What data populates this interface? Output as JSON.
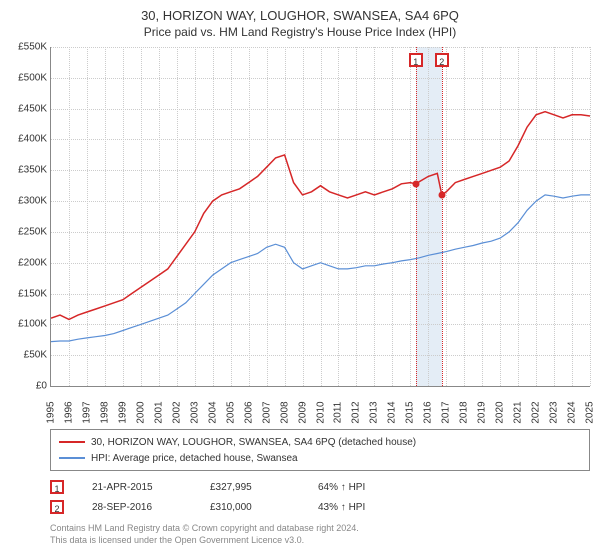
{
  "title": "30, HORIZON WAY, LOUGHOR, SWANSEA, SA4 6PQ",
  "subtitle": "Price paid vs. HM Land Registry's House Price Index (HPI)",
  "chart": {
    "type": "line",
    "background_color": "#ffffff",
    "grid_color": "#cccccc",
    "axis_color": "#888888",
    "ylim": [
      0,
      550000
    ],
    "ytick_step": 50000,
    "ytick_labels": [
      "£0",
      "£50K",
      "£100K",
      "£150K",
      "£200K",
      "£250K",
      "£300K",
      "£350K",
      "£400K",
      "£450K",
      "£500K",
      "£550K"
    ],
    "xlim": [
      1995,
      2025
    ],
    "xtick_step": 1,
    "xtick_labels": [
      "1995",
      "1996",
      "1997",
      "1998",
      "1999",
      "2000",
      "2001",
      "2002",
      "2003",
      "2004",
      "2005",
      "2006",
      "2007",
      "2008",
      "2009",
      "2010",
      "2011",
      "2012",
      "2013",
      "2014",
      "2015",
      "2016",
      "2017",
      "2018",
      "2019",
      "2020",
      "2021",
      "2022",
      "2023",
      "2024",
      "2025"
    ],
    "label_fontsize": 10,
    "highlight_band": {
      "x_start": 2015.3,
      "x_end": 2016.75,
      "color": "#d9e6f2"
    },
    "series": [
      {
        "name": "price_paid",
        "label": "30, HORIZON WAY, LOUGHOR, SWANSEA, SA4 6PQ (detached house)",
        "color": "#d62728",
        "line_width": 1.5,
        "points": [
          [
            1995,
            110000
          ],
          [
            1995.5,
            115000
          ],
          [
            1996,
            108000
          ],
          [
            1996.5,
            115000
          ],
          [
            1997,
            120000
          ],
          [
            1997.5,
            125000
          ],
          [
            1998,
            130000
          ],
          [
            1998.5,
            135000
          ],
          [
            1999,
            140000
          ],
          [
            1999.5,
            150000
          ],
          [
            2000,
            160000
          ],
          [
            2000.5,
            170000
          ],
          [
            2001,
            180000
          ],
          [
            2001.5,
            190000
          ],
          [
            2002,
            210000
          ],
          [
            2002.5,
            230000
          ],
          [
            2003,
            250000
          ],
          [
            2003.5,
            280000
          ],
          [
            2004,
            300000
          ],
          [
            2004.5,
            310000
          ],
          [
            2005,
            315000
          ],
          [
            2005.5,
            320000
          ],
          [
            2006,
            330000
          ],
          [
            2006.5,
            340000
          ],
          [
            2007,
            355000
          ],
          [
            2007.5,
            370000
          ],
          [
            2008,
            375000
          ],
          [
            2008.5,
            330000
          ],
          [
            2009,
            310000
          ],
          [
            2009.5,
            315000
          ],
          [
            2010,
            325000
          ],
          [
            2010.5,
            315000
          ],
          [
            2011,
            310000
          ],
          [
            2011.5,
            305000
          ],
          [
            2012,
            310000
          ],
          [
            2012.5,
            315000
          ],
          [
            2013,
            310000
          ],
          [
            2013.5,
            315000
          ],
          [
            2014,
            320000
          ],
          [
            2014.5,
            328000
          ],
          [
            2015,
            330000
          ],
          [
            2015.3,
            327995
          ],
          [
            2016,
            340000
          ],
          [
            2016.5,
            345000
          ],
          [
            2016.75,
            310000
          ],
          [
            2017,
            315000
          ],
          [
            2017.5,
            330000
          ],
          [
            2018,
            335000
          ],
          [
            2018.5,
            340000
          ],
          [
            2019,
            345000
          ],
          [
            2019.5,
            350000
          ],
          [
            2020,
            355000
          ],
          [
            2020.5,
            365000
          ],
          [
            2021,
            390000
          ],
          [
            2021.5,
            420000
          ],
          [
            2022,
            440000
          ],
          [
            2022.5,
            445000
          ],
          [
            2023,
            440000
          ],
          [
            2023.5,
            435000
          ],
          [
            2024,
            440000
          ],
          [
            2024.5,
            440000
          ],
          [
            2025,
            438000
          ]
        ]
      },
      {
        "name": "hpi",
        "label": "HPI: Average price, detached house, Swansea",
        "color": "#5b8fd6",
        "line_width": 1.2,
        "points": [
          [
            1995,
            72000
          ],
          [
            1995.5,
            73000
          ],
          [
            1996,
            73000
          ],
          [
            1996.5,
            76000
          ],
          [
            1997,
            78000
          ],
          [
            1997.5,
            80000
          ],
          [
            1998,
            82000
          ],
          [
            1998.5,
            85000
          ],
          [
            1999,
            90000
          ],
          [
            1999.5,
            95000
          ],
          [
            2000,
            100000
          ],
          [
            2000.5,
            105000
          ],
          [
            2001,
            110000
          ],
          [
            2001.5,
            115000
          ],
          [
            2002,
            125000
          ],
          [
            2002.5,
            135000
          ],
          [
            2003,
            150000
          ],
          [
            2003.5,
            165000
          ],
          [
            2004,
            180000
          ],
          [
            2004.5,
            190000
          ],
          [
            2005,
            200000
          ],
          [
            2005.5,
            205000
          ],
          [
            2006,
            210000
          ],
          [
            2006.5,
            215000
          ],
          [
            2007,
            225000
          ],
          [
            2007.5,
            230000
          ],
          [
            2008,
            225000
          ],
          [
            2008.5,
            200000
          ],
          [
            2009,
            190000
          ],
          [
            2009.5,
            195000
          ],
          [
            2010,
            200000
          ],
          [
            2010.5,
            195000
          ],
          [
            2011,
            190000
          ],
          [
            2011.5,
            190000
          ],
          [
            2012,
            192000
          ],
          [
            2012.5,
            195000
          ],
          [
            2013,
            195000
          ],
          [
            2013.5,
            198000
          ],
          [
            2014,
            200000
          ],
          [
            2014.5,
            203000
          ],
          [
            2015,
            205000
          ],
          [
            2015.5,
            208000
          ],
          [
            2016,
            212000
          ],
          [
            2016.5,
            215000
          ],
          [
            2017,
            218000
          ],
          [
            2017.5,
            222000
          ],
          [
            2018,
            225000
          ],
          [
            2018.5,
            228000
          ],
          [
            2019,
            232000
          ],
          [
            2019.5,
            235000
          ],
          [
            2020,
            240000
          ],
          [
            2020.5,
            250000
          ],
          [
            2021,
            265000
          ],
          [
            2021.5,
            285000
          ],
          [
            2022,
            300000
          ],
          [
            2022.5,
            310000
          ],
          [
            2023,
            308000
          ],
          [
            2023.5,
            305000
          ],
          [
            2024,
            308000
          ],
          [
            2024.5,
            310000
          ],
          [
            2025,
            310000
          ]
        ]
      }
    ],
    "events": [
      {
        "num": "1",
        "x": 2015.3,
        "line_color": "#d62728",
        "marker_border": "#d62728",
        "point_y": 327995
      },
      {
        "num": "2",
        "x": 2016.75,
        "line_color": "#d62728",
        "marker_border": "#d62728",
        "point_y": 310000
      }
    ]
  },
  "legend": {
    "border_color": "#888888",
    "items": [
      {
        "color": "#d62728",
        "label": "30, HORIZON WAY, LOUGHOR, SWANSEA, SA4 6PQ (detached house)"
      },
      {
        "color": "#5b8fd6",
        "label": "HPI: Average price, detached house, Swansea"
      }
    ]
  },
  "events_table": [
    {
      "num": "1",
      "border": "#d62728",
      "date": "21-APR-2015",
      "price": "£327,995",
      "pct": "64% ↑ HPI"
    },
    {
      "num": "2",
      "border": "#d62728",
      "date": "28-SEP-2016",
      "price": "£310,000",
      "pct": "43% ↑ HPI"
    }
  ],
  "copyright": {
    "line1": "Contains HM Land Registry data © Crown copyright and database right 2024.",
    "line2": "This data is licensed under the Open Government Licence v3.0."
  }
}
